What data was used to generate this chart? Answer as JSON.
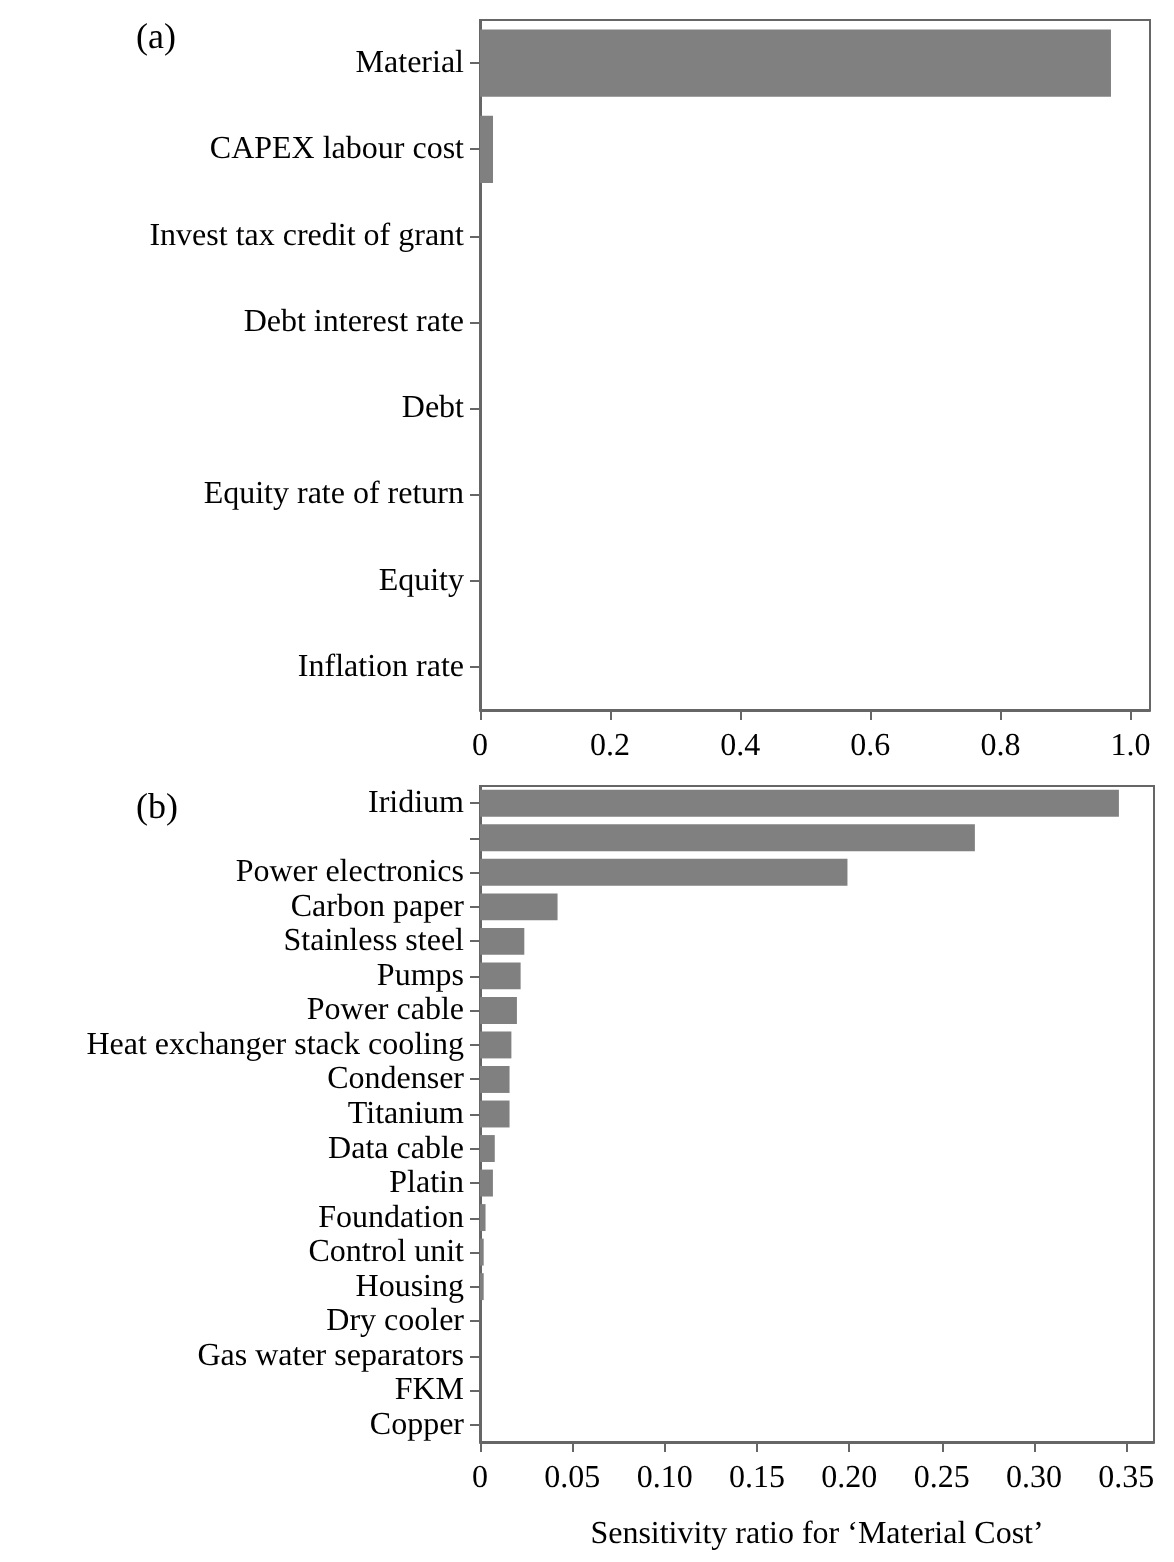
{
  "chart_data": [
    {
      "type": "bar",
      "title": "(a)",
      "orientation": "horizontal",
      "categories": [
        "Material",
        "CAPEX labour cost",
        "Invest tax credit of grant",
        "Debt interest rate",
        "Debt",
        "Equity rate of return",
        "Equity",
        "Inflation rate"
      ],
      "series": [
        {
          "color": "#808080",
          "values": [
            0.97,
            0.02,
            0,
            0,
            0,
            0,
            0,
            0
          ]
        }
      ],
      "xlim": [
        0,
        1.03
      ],
      "xticks": [
        0,
        0.2,
        0.4,
        0.6,
        0.8,
        {
          "value": 1,
          "label": "1.0"
        }
      ],
      "grid": false
    },
    {
      "type": "bar",
      "title": "(b)",
      "orientation": "horizontal",
      "xlabel": "Sensitivity ratio for ‘Material Cost’",
      "categories": [
        "Iridium",
        null,
        "Power electronics",
        "Carbon paper",
        "Stainless steel",
        "Pumps",
        "Power cable",
        "Heat exchanger stack cooling",
        "Condenser",
        "Titanium",
        "Data cable",
        "Platin",
        "Foundation",
        "Control unit",
        "Housing",
        "Dry cooler",
        "Gas water separators",
        "FKM",
        "Copper"
      ],
      "series": [
        {
          "color": "#808080",
          "values": [
            0.346,
            0.268,
            0.199,
            0.042,
            0.024,
            0.022,
            0.02,
            0.017,
            0.016,
            0.016,
            0.008,
            0.007,
            0.003,
            0.002,
            0.002,
            0,
            0,
            0,
            0
          ]
        }
      ],
      "xlim": [
        0,
        0.365
      ],
      "xticks": [
        0,
        {
          "value": 0.05,
          "label": "0.05"
        },
        {
          "value": 0.1,
          "label": "0.10"
        },
        {
          "value": 0.15,
          "label": "0.15"
        },
        {
          "value": 0.2,
          "label": "0.20"
        },
        {
          "value": 0.25,
          "label": "0.25"
        },
        {
          "value": 0.3,
          "label": "0.30"
        },
        {
          "value": 0.35,
          "label": "0.35"
        }
      ],
      "grid": false
    }
  ]
}
